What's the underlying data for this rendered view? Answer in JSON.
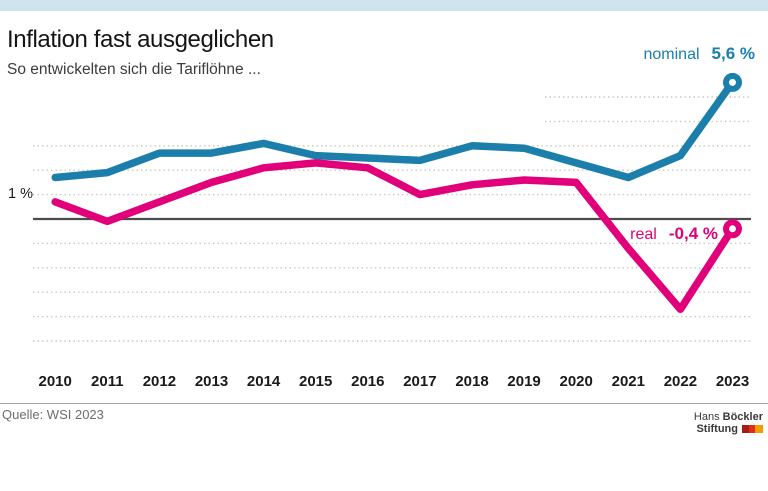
{
  "header": {
    "title": "Inflation fast ausgeglichen",
    "subtitle": "So entwickelten sich die Tariflöhne ..."
  },
  "chart_meta": {
    "y_axis_label": "1 %"
  },
  "chart_data": {
    "type": "line",
    "title": "Inflation fast ausgeglichen",
    "subtitle": "So entwickelten sich die Tariflöhne ...",
    "categories": [
      "2010",
      "2011",
      "2012",
      "2013",
      "2014",
      "2015",
      "2016",
      "2017",
      "2018",
      "2019",
      "2020",
      "2021",
      "2022",
      "2023"
    ],
    "series": [
      {
        "name": "nominal",
        "color": "#1b7eab",
        "values": [
          1.7,
          1.9,
          2.7,
          2.7,
          3.1,
          2.6,
          2.5,
          2.4,
          3.0,
          2.9,
          2.3,
          1.7,
          2.6,
          5.6
        ],
        "end_label": "nominal",
        "end_value_label": "5,6 %"
      },
      {
        "name": "real",
        "color": "#e2007a",
        "values": [
          0.7,
          -0.1,
          0.7,
          1.5,
          2.1,
          2.3,
          2.1,
          1.0,
          1.4,
          1.6,
          1.5,
          -1.2,
          -3.7,
          -0.4
        ],
        "end_label": "real",
        "end_value_label": "-0,4 %"
      }
    ],
    "xlabel": "",
    "ylabel": "",
    "y_unit": "%",
    "ylim": [
      -5,
      6
    ],
    "grid": true,
    "gridlines_full_pct": [
      3,
      2,
      1,
      -1,
      -2,
      -3,
      -4,
      -5
    ],
    "gridlines_partial_pct": [
      5,
      4
    ],
    "zero_line_pct": 0,
    "legend_position": "line-end-labels"
  },
  "footer": {
    "source": "Quelle: WSI 2023",
    "logo": {
      "name_first": "Hans",
      "name_last": "Böckler",
      "org": "Stiftung"
    }
  },
  "colors": {
    "accent_bar": "#cfe4ee",
    "nominal": "#1b7eab",
    "real": "#e2007a",
    "grid_dots": "#c9c6b4",
    "zero_line": "#4c4c4c",
    "logo_flag": [
      "#a61b16",
      "#dc2f16",
      "#f59b00"
    ]
  }
}
